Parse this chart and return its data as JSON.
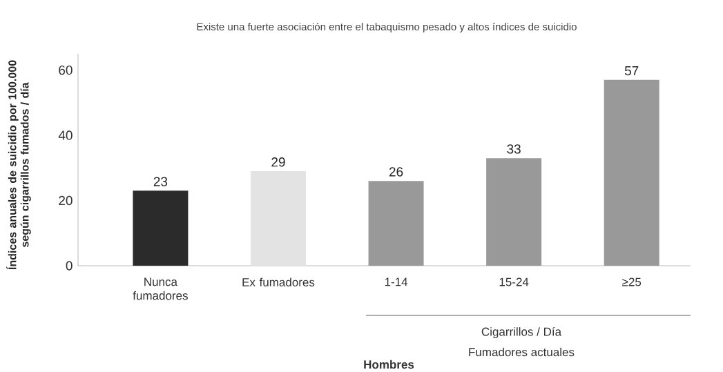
{
  "chart_data": {
    "type": "bar",
    "title": "Existe una fuerte asociación entre el tabaquismo pesado y altos índices de suicidio",
    "categories": [
      "Nunca fumadores",
      "Ex fumadores",
      "1-14",
      "15-24",
      "≥25"
    ],
    "values": [
      23,
      29,
      26,
      33,
      57
    ],
    "colors": [
      "#2b2b2b",
      "#e3e3e3",
      "#999999",
      "#999999",
      "#999999"
    ],
    "ylim": [
      0,
      65
    ],
    "yticks": [
      0,
      20,
      40,
      60
    ],
    "ylabel": "Índices anuales de suicidio por 100.000 según cigarrillos fumados / día",
    "annotations": [
      "Cigarrillos / Día",
      "Fumadores actuales",
      "Hombres"
    ],
    "data_labels": true,
    "grid": false
  }
}
